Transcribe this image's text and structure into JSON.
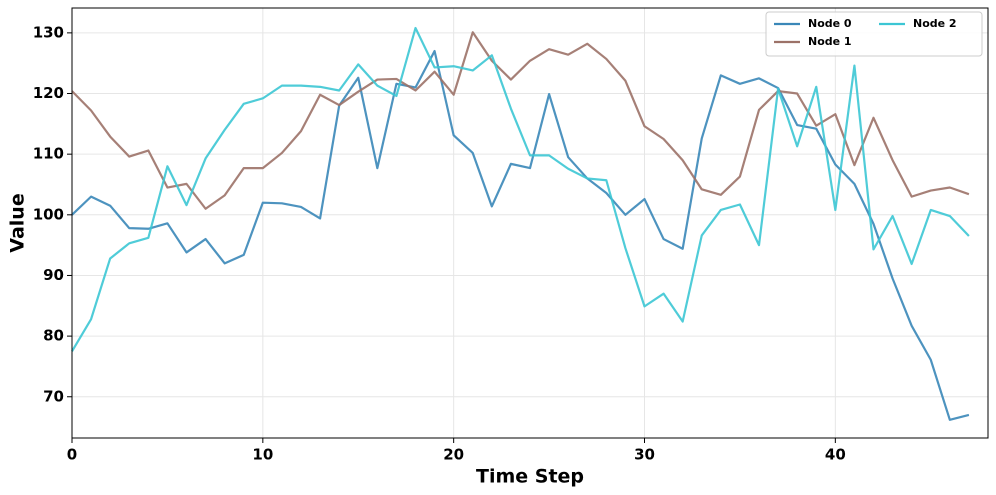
{
  "chart_data": {
    "type": "line",
    "xlabel": "Time Step",
    "ylabel": "Value",
    "x": [
      0,
      1,
      2,
      3,
      4,
      5,
      6,
      7,
      8,
      9,
      10,
      11,
      12,
      13,
      14,
      15,
      16,
      17,
      18,
      19,
      20,
      21,
      22,
      23,
      24,
      25,
      26,
      27,
      28,
      29,
      30,
      31,
      32,
      33,
      34,
      35,
      36,
      37,
      38,
      39,
      40,
      41,
      42,
      43,
      44,
      45,
      46,
      47
    ],
    "series": [
      {
        "name": "Node 0",
        "color": "#3a87b8",
        "values": [
          100,
          103,
          101.5,
          97.8,
          97.7,
          98.6,
          93.8,
          96,
          92,
          93.4,
          102,
          101.9,
          101.3,
          99.4,
          118,
          122.6,
          107.7,
          121.6,
          121,
          127,
          113.1,
          110.2,
          101.4,
          108.4,
          107.7,
          119.9,
          109.5,
          106,
          103.6,
          100,
          102.6,
          96,
          94.4,
          112.6,
          123,
          121.6,
          122.5,
          120.9,
          114.8,
          114.2,
          108.3,
          105.1,
          98.5,
          89.5,
          81.7,
          76.1,
          66.2,
          67
        ]
      },
      {
        "name": "Node 1",
        "color": "#9c7268",
        "values": [
          120.4,
          117.2,
          112.9,
          109.6,
          110.6,
          104.5,
          105.1,
          101,
          103.2,
          107.7,
          107.7,
          110.2,
          113.8,
          119.8,
          118.1,
          120.3,
          122.3,
          122.4,
          120.5,
          123.6,
          119.8,
          130.1,
          125.4,
          122.3,
          125.4,
          127.3,
          126.4,
          128.2,
          125.7,
          122.1,
          114.6,
          112.5,
          109,
          104.2,
          103.3,
          106.3,
          117.3,
          120.4,
          120,
          114.7,
          116.6,
          108.2,
          116,
          109,
          103,
          104,
          104.5,
          103.4
        ]
      },
      {
        "name": "Node 2",
        "color": "#3cc6d4",
        "values": [
          77.5,
          82.8,
          92.8,
          95.3,
          96.2,
          108,
          101.6,
          109.3,
          114,
          118.3,
          119.2,
          121.3,
          121.3,
          121.1,
          120.5,
          124.8,
          121.3,
          119.6,
          130.8,
          124.3,
          124.5,
          123.8,
          126.3,
          117.5,
          109.8,
          109.8,
          107.6,
          106,
          105.7,
          94.5,
          84.9,
          87,
          82.4,
          96.6,
          100.8,
          101.7,
          95,
          120.8,
          111.3,
          121.1,
          100.8,
          124.6,
          94.3,
          99.8,
          91.9,
          100.8,
          99.8,
          96.5
        ]
      }
    ],
    "xlim": [
      0,
      48
    ],
    "xticks": [
      0,
      10,
      20,
      30,
      40
    ],
    "ylim": [
      63.2,
      134.1
    ],
    "yticks": [
      70,
      80,
      90,
      100,
      110,
      120,
      130
    ],
    "grid": true,
    "legend": "upper-right",
    "legend_columns": 2
  }
}
